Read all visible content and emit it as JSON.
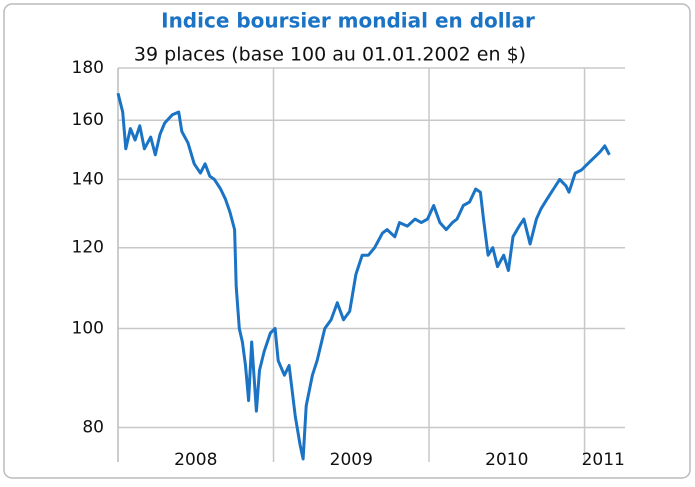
{
  "chart_data": {
    "type": "line",
    "title": "Indice boursier mondial en dollar",
    "subtitle": "39 places (base 100 au 01.01.2002 en $)",
    "log_scale": true,
    "grid": true,
    "ylim": [
      74,
      180
    ],
    "yticks": [
      80,
      100,
      120,
      140,
      160,
      180
    ],
    "xlim": [
      2008,
      2011.26
    ],
    "xticks": [
      {
        "value": 2008.5,
        "label": "2008"
      },
      {
        "value": 2009.5,
        "label": "2009"
      },
      {
        "value": 2010.5,
        "label": "2010"
      },
      {
        "value": 2011.12,
        "label": "2011"
      }
    ],
    "xgrid": [
      2009,
      2010,
      2011
    ],
    "series": [
      {
        "color": "#1a73c4",
        "x": [
          2008.0,
          2008.03,
          2008.05,
          2008.08,
          2008.11,
          2008.14,
          2008.17,
          2008.21,
          2008.24,
          2008.27,
          2008.3,
          2008.35,
          2008.39,
          2008.41,
          2008.45,
          2008.49,
          2008.53,
          2008.56,
          2008.59,
          2008.62,
          2008.66,
          2008.69,
          2008.72,
          2008.75,
          2008.76,
          2008.78,
          2008.8,
          2008.82,
          2008.84,
          2008.86,
          2008.89,
          2008.91,
          2008.94,
          2008.98,
          2009.01,
          2009.03,
          2009.07,
          2009.1,
          2009.14,
          2009.17,
          2009.19,
          2009.21,
          2009.25,
          2009.28,
          2009.33,
          2009.37,
          2009.41,
          2009.45,
          2009.49,
          2009.53,
          2009.57,
          2009.61,
          2009.65,
          2009.7,
          2009.73,
          2009.78,
          2009.81,
          2009.86,
          2009.91,
          2009.95,
          2009.99,
          2010.03,
          2010.07,
          2010.11,
          2010.15,
          2010.18,
          2010.22,
          2010.26,
          2010.3,
          2010.33,
          2010.35,
          2010.38,
          2010.41,
          2010.44,
          2010.48,
          2010.51,
          2010.54,
          2010.58,
          2010.61,
          2010.65,
          2010.69,
          2010.72,
          2010.76,
          2010.8,
          2010.84,
          2010.88,
          2010.9,
          2010.94,
          2010.98,
          2011.02,
          2011.06,
          2011.1,
          2011.13,
          2011.16
        ],
        "values": [
          170,
          163,
          150,
          157,
          153,
          158,
          150,
          154,
          148,
          155,
          159,
          162,
          163,
          156,
          152,
          145,
          142,
          145,
          141,
          140,
          137,
          134,
          130,
          125,
          110,
          100,
          97,
          92,
          85,
          97,
          83,
          91,
          95,
          99,
          100,
          93,
          90,
          92,
          82,
          77,
          74.5,
          84,
          90,
          93,
          100,
          102,
          106,
          102,
          104,
          113,
          118,
          118,
          120,
          124,
          125,
          123,
          127,
          126,
          128,
          127,
          128,
          132,
          127,
          125,
          127,
          128,
          132,
          133,
          137,
          136,
          128,
          118,
          120,
          115,
          118,
          114,
          123,
          126,
          128,
          121,
          128,
          131,
          134,
          137,
          140,
          138,
          136,
          142,
          143,
          145,
          147,
          149,
          151,
          148
        ]
      }
    ]
  }
}
